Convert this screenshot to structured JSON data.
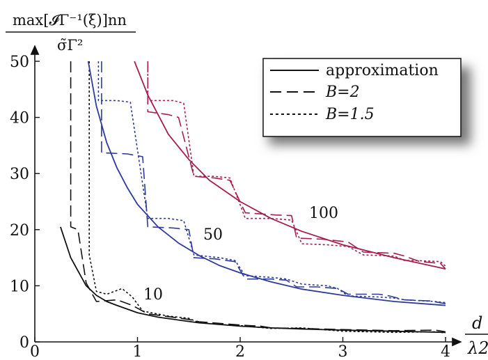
{
  "chart_data": {
    "type": "line",
    "ylabel_numerator": "max[𝓘Γ⁻¹(ξ)]nn",
    "ylabel_denominator": "σ̃Γ²",
    "xlabel_numerator": "d",
    "xlabel_denominator": "λ2",
    "xlim": [
      0,
      4
    ],
    "ylim": [
      0,
      50
    ],
    "xticks": [
      "0",
      "1",
      "2",
      "3",
      "4"
    ],
    "yticks": [
      "0",
      "10",
      "20",
      "30",
      "40",
      "50"
    ],
    "legend": {
      "placement": "top-right",
      "entries": [
        {
          "label": "approximation",
          "style": "solid"
        },
        {
          "label": "B=2",
          "style": "dashed"
        },
        {
          "label": "B=1.5",
          "style": "dotted"
        }
      ]
    },
    "groups": [
      {
        "annotation": "10",
        "color": "#111111",
        "approximation": [
          [
            0.25,
            20.5
          ],
          [
            0.35,
            15
          ],
          [
            0.5,
            10
          ],
          [
            0.6,
            8.3
          ],
          [
            0.7,
            7.2
          ],
          [
            0.8,
            6.5
          ],
          [
            1.0,
            5.2
          ],
          [
            1.2,
            4.4
          ],
          [
            1.4,
            3.9
          ],
          [
            1.6,
            3.4
          ],
          [
            1.8,
            3.1
          ],
          [
            2.0,
            2.8
          ],
          [
            2.3,
            2.5
          ],
          [
            2.6,
            2.3
          ],
          [
            3.0,
            2.1
          ],
          [
            3.5,
            1.9
          ],
          [
            4.0,
            1.7
          ]
        ],
        "B2": [
          [
            0.35,
            50
          ],
          [
            0.35,
            20.5
          ],
          [
            0.42,
            20
          ],
          [
            0.5,
            10.5
          ],
          [
            0.6,
            7.2
          ],
          [
            0.8,
            7.5
          ],
          [
            0.95,
            6.5
          ],
          [
            1.1,
            5
          ],
          [
            1.3,
            4.5
          ],
          [
            1.5,
            4
          ],
          [
            1.6,
            3.6
          ],
          [
            1.8,
            3.3
          ],
          [
            2.0,
            3.0
          ],
          [
            2.2,
            2.8
          ],
          [
            2.3,
            2.5
          ],
          [
            2.6,
            2.4
          ],
          [
            3.0,
            2.2
          ],
          [
            3.5,
            2.0
          ],
          [
            3.9,
            2.1
          ],
          [
            4.0,
            1.8
          ]
        ],
        "B15": [
          [
            0.53,
            50
          ],
          [
            0.53,
            15.5
          ],
          [
            0.6,
            9
          ],
          [
            0.7,
            8.5
          ],
          [
            0.85,
            9.5
          ],
          [
            0.95,
            8
          ],
          [
            1.05,
            5.5
          ],
          [
            1.3,
            4.6
          ],
          [
            1.5,
            4.2
          ],
          [
            1.6,
            3.4
          ],
          [
            1.8,
            3.1
          ],
          [
            2.0,
            2.9
          ],
          [
            2.3,
            2.4
          ],
          [
            2.6,
            2.5
          ],
          [
            3.0,
            1.9
          ],
          [
            3.5,
            1.7
          ],
          [
            3.9,
            1.8
          ],
          [
            4.0,
            1.6
          ]
        ]
      },
      {
        "annotation": "50",
        "color": "#2e3a9a",
        "approximation": [
          [
            0.52,
            50
          ],
          [
            0.6,
            42
          ],
          [
            0.7,
            35.5
          ],
          [
            0.8,
            31
          ],
          [
            0.9,
            27.5
          ],
          [
            1.0,
            24.5
          ],
          [
            1.2,
            20.5
          ],
          [
            1.4,
            17.6
          ],
          [
            1.6,
            15.4
          ],
          [
            1.8,
            13.6
          ],
          [
            2.0,
            12.3
          ],
          [
            2.3,
            10.7
          ],
          [
            2.6,
            9.4
          ],
          [
            3.0,
            8.3
          ],
          [
            3.5,
            7.2
          ],
          [
            4.0,
            6.5
          ]
        ],
        "B2": [
          [
            0.65,
            50
          ],
          [
            0.65,
            33.7
          ],
          [
            0.9,
            33.5
          ],
          [
            1.05,
            33
          ],
          [
            1.1,
            20.5
          ],
          [
            1.35,
            20.3
          ],
          [
            1.5,
            20
          ],
          [
            1.55,
            15
          ],
          [
            1.75,
            14.8
          ],
          [
            1.95,
            14.3
          ],
          [
            2.05,
            11.2
          ],
          [
            2.3,
            11.2
          ],
          [
            2.45,
            11
          ],
          [
            2.55,
            9.8
          ],
          [
            2.75,
            9.8
          ],
          [
            2.95,
            9.5
          ],
          [
            3.05,
            8.5
          ],
          [
            3.35,
            8.5
          ],
          [
            3.45,
            8.2
          ],
          [
            3.6,
            7.5
          ],
          [
            3.85,
            7.3
          ],
          [
            4.0,
            6.8
          ]
        ],
        "B15": [
          [
            0.62,
            50
          ],
          [
            0.62,
            43
          ],
          [
            0.8,
            43
          ],
          [
            0.93,
            42.7
          ],
          [
            1.1,
            22
          ],
          [
            1.3,
            22
          ],
          [
            1.45,
            21.6
          ],
          [
            1.55,
            15.5
          ],
          [
            1.8,
            15
          ],
          [
            1.95,
            14.5
          ],
          [
            2.05,
            11.8
          ],
          [
            2.3,
            11.5
          ],
          [
            2.45,
            11.2
          ],
          [
            2.6,
            10.3
          ],
          [
            2.85,
            10
          ],
          [
            2.95,
            9.5
          ],
          [
            3.05,
            8.2
          ],
          [
            3.35,
            8
          ],
          [
            3.5,
            7.8
          ],
          [
            3.6,
            7.5
          ],
          [
            3.9,
            7.2
          ],
          [
            4.0,
            7
          ]
        ]
      },
      {
        "annotation": "100",
        "color": "#a51e4d",
        "approximation": [
          [
            0.97,
            50
          ],
          [
            1.1,
            44
          ],
          [
            1.3,
            37
          ],
          [
            1.5,
            32.5
          ],
          [
            1.7,
            28.8
          ],
          [
            2.0,
            25
          ],
          [
            2.3,
            22
          ],
          [
            2.6,
            19.7
          ],
          [
            3.0,
            17.3
          ],
          [
            3.5,
            15
          ],
          [
            4.0,
            13
          ]
        ],
        "B2": [
          [
            1.1,
            50
          ],
          [
            1.1,
            41
          ],
          [
            1.3,
            40.5
          ],
          [
            1.4,
            40
          ],
          [
            1.55,
            29.5
          ],
          [
            1.75,
            29.2
          ],
          [
            1.9,
            28.8
          ],
          [
            2.05,
            23
          ],
          [
            2.35,
            22.6
          ],
          [
            2.5,
            22.5
          ],
          [
            2.55,
            18.5
          ],
          [
            2.8,
            18.3
          ],
          [
            3.05,
            17.8
          ],
          [
            3.2,
            16
          ],
          [
            3.5,
            15.8
          ],
          [
            3.6,
            15.3
          ],
          [
            3.75,
            14.3
          ],
          [
            3.95,
            14
          ],
          [
            4.0,
            13
          ]
        ],
        "B15": [
          [
            1.1,
            50
          ],
          [
            1.1,
            43
          ],
          [
            1.35,
            43
          ],
          [
            1.45,
            42.5
          ],
          [
            1.55,
            29.5
          ],
          [
            1.75,
            29.5
          ],
          [
            1.9,
            29.2
          ],
          [
            2.05,
            22
          ],
          [
            2.3,
            22
          ],
          [
            2.5,
            21.7
          ],
          [
            2.6,
            17.5
          ],
          [
            2.85,
            17.3
          ],
          [
            3.05,
            17
          ],
          [
            3.2,
            15.5
          ],
          [
            3.5,
            15.3
          ],
          [
            3.6,
            14.5
          ],
          [
            3.7,
            14.5
          ],
          [
            3.95,
            14.3
          ],
          [
            4.0,
            13.5
          ]
        ]
      }
    ]
  }
}
